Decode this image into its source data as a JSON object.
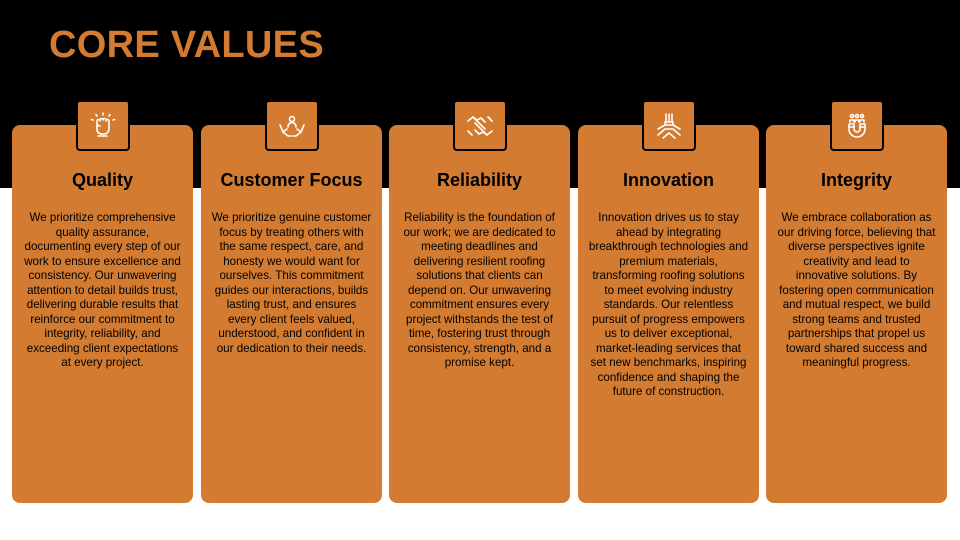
{
  "page": {
    "title": "CORE VALUES",
    "colors": {
      "accent": "#D27B31",
      "dark": "#000000",
      "light": "#FFFFFF"
    }
  },
  "cards": [
    {
      "icon": "raised-fist-icon",
      "title": "Quality",
      "body": "We prioritize comprehensive quality assurance, documenting every step of our work to ensure excellence and consistency. Our unwavering attention to detail builds trust, delivering durable results that reinforce our commitment to integrity, reliability, and exceeding client expectations at every project."
    },
    {
      "icon": "hands-support-icon",
      "title": "Customer Focus",
      "body": "We prioritize genuine customer focus by treating others with the same respect, care, and honesty we would want for ourselves. This commitment guides our interactions, builds lasting trust, and ensures every client feels valued, understood, and confident in our dedication to their needs."
    },
    {
      "icon": "handshake-icon",
      "title": "Reliability",
      "body": "Reliability is the foundation of our work; we are dedicated to meeting deadlines and delivering resilient roofing solutions that clients can depend on. Our unwavering commitment ensures every project withstands the test of time, fostering trust through consistency, strength, and a promise kept."
    },
    {
      "icon": "team-hands-icon",
      "title": "Innovation",
      "body": "Innovation drives us to stay ahead by integrating breakthrough technologies and premium materials, transforming roofing solutions to meet evolving industry standards. Our relentless pursuit of progress empowers us to deliver exceptional, market-leading services that set new benchmarks, inspiring confidence and shaping the future of construction."
    },
    {
      "icon": "magnet-people-icon",
      "title": "Integrity",
      "body": "We embrace collaboration as our driving force, believing that diverse perspectives ignite creativity and lead to innovative solutions. By fostering open communication and mutual respect, we build strong teams and trusted partnerships that propel us toward shared success and meaningful progress."
    }
  ]
}
